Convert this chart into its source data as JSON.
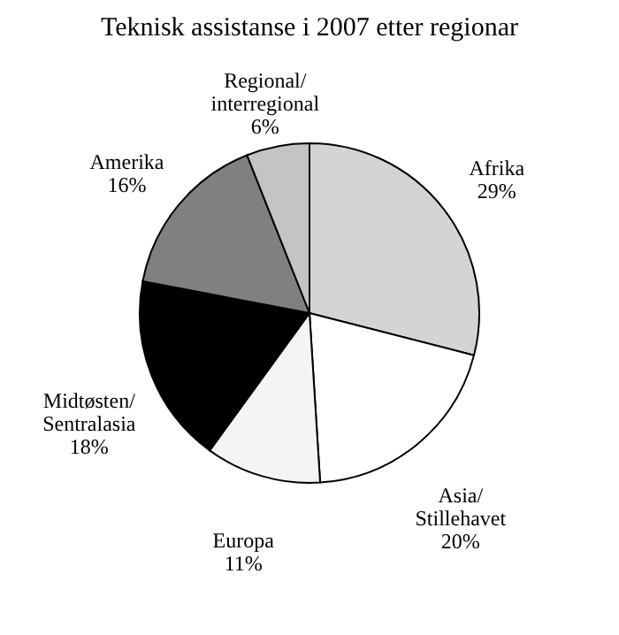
{
  "chart_data": {
    "type": "pie",
    "title": "Teknisk assistanse i 2007 etter regionar",
    "categories": [
      "Afrika",
      "Asia/Stillehavet",
      "Europa",
      "Midtøsten/Sentralasia",
      "Amerika",
      "Regional/interregional"
    ],
    "values": [
      29,
      20,
      11,
      18,
      16,
      6
    ],
    "value_labels": [
      "29%",
      "20%",
      "11%",
      "18%",
      "16%",
      "6%"
    ],
    "colors": [
      "#d4d4d4",
      "#ffffff",
      "#f4f4f4",
      "#000000",
      "#808080",
      "#c4c4c4"
    ]
  }
}
